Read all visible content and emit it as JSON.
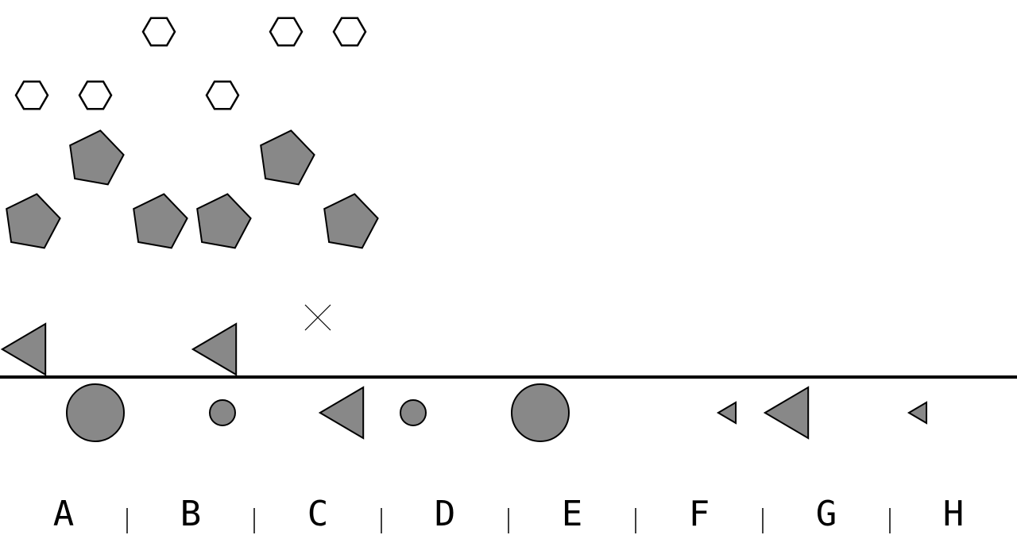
{
  "columns": [
    "A",
    "B",
    "C",
    "D",
    "E",
    "F",
    "G",
    "H"
  ],
  "colors": {
    "shape_fill": "#888888",
    "outline": "#000000",
    "background": "#ffffff"
  },
  "pieces": [
    {
      "shape": "hexagon",
      "fill": "none",
      "size": "small"
    },
    {
      "shape": "hexagon",
      "fill": "none",
      "size": "small"
    },
    {
      "shape": "hexagon",
      "fill": "none",
      "size": "small"
    },
    {
      "shape": "hexagon",
      "fill": "none",
      "size": "small"
    },
    {
      "shape": "hexagon",
      "fill": "none",
      "size": "small"
    },
    {
      "shape": "hexagon",
      "fill": "none",
      "size": "small"
    },
    {
      "shape": "pentagon",
      "fill": "gray",
      "size": "large"
    },
    {
      "shape": "pentagon",
      "fill": "gray",
      "size": "large"
    },
    {
      "shape": "pentagon",
      "fill": "gray",
      "size": "large"
    },
    {
      "shape": "pentagon",
      "fill": "gray",
      "size": "large"
    },
    {
      "shape": "pentagon",
      "fill": "gray",
      "size": "large"
    },
    {
      "shape": "pentagon",
      "fill": "gray",
      "size": "large"
    },
    {
      "shape": "cross",
      "fill": "none",
      "size": "small"
    },
    {
      "shape": "triangle-left",
      "fill": "gray",
      "size": "large"
    },
    {
      "shape": "triangle-left",
      "fill": "gray",
      "size": "large"
    },
    {
      "shape": "circle",
      "fill": "gray",
      "size": "large"
    },
    {
      "shape": "circle",
      "fill": "gray",
      "size": "small"
    },
    {
      "shape": "triangle-left",
      "fill": "gray",
      "size": "large"
    },
    {
      "shape": "circle",
      "fill": "gray",
      "size": "small"
    },
    {
      "shape": "circle",
      "fill": "gray",
      "size": "large"
    },
    {
      "shape": "triangle-left",
      "fill": "gray",
      "size": "small"
    },
    {
      "shape": "triangle-left",
      "fill": "gray",
      "size": "large"
    },
    {
      "shape": "triangle-left",
      "fill": "gray",
      "size": "small"
    }
  ]
}
